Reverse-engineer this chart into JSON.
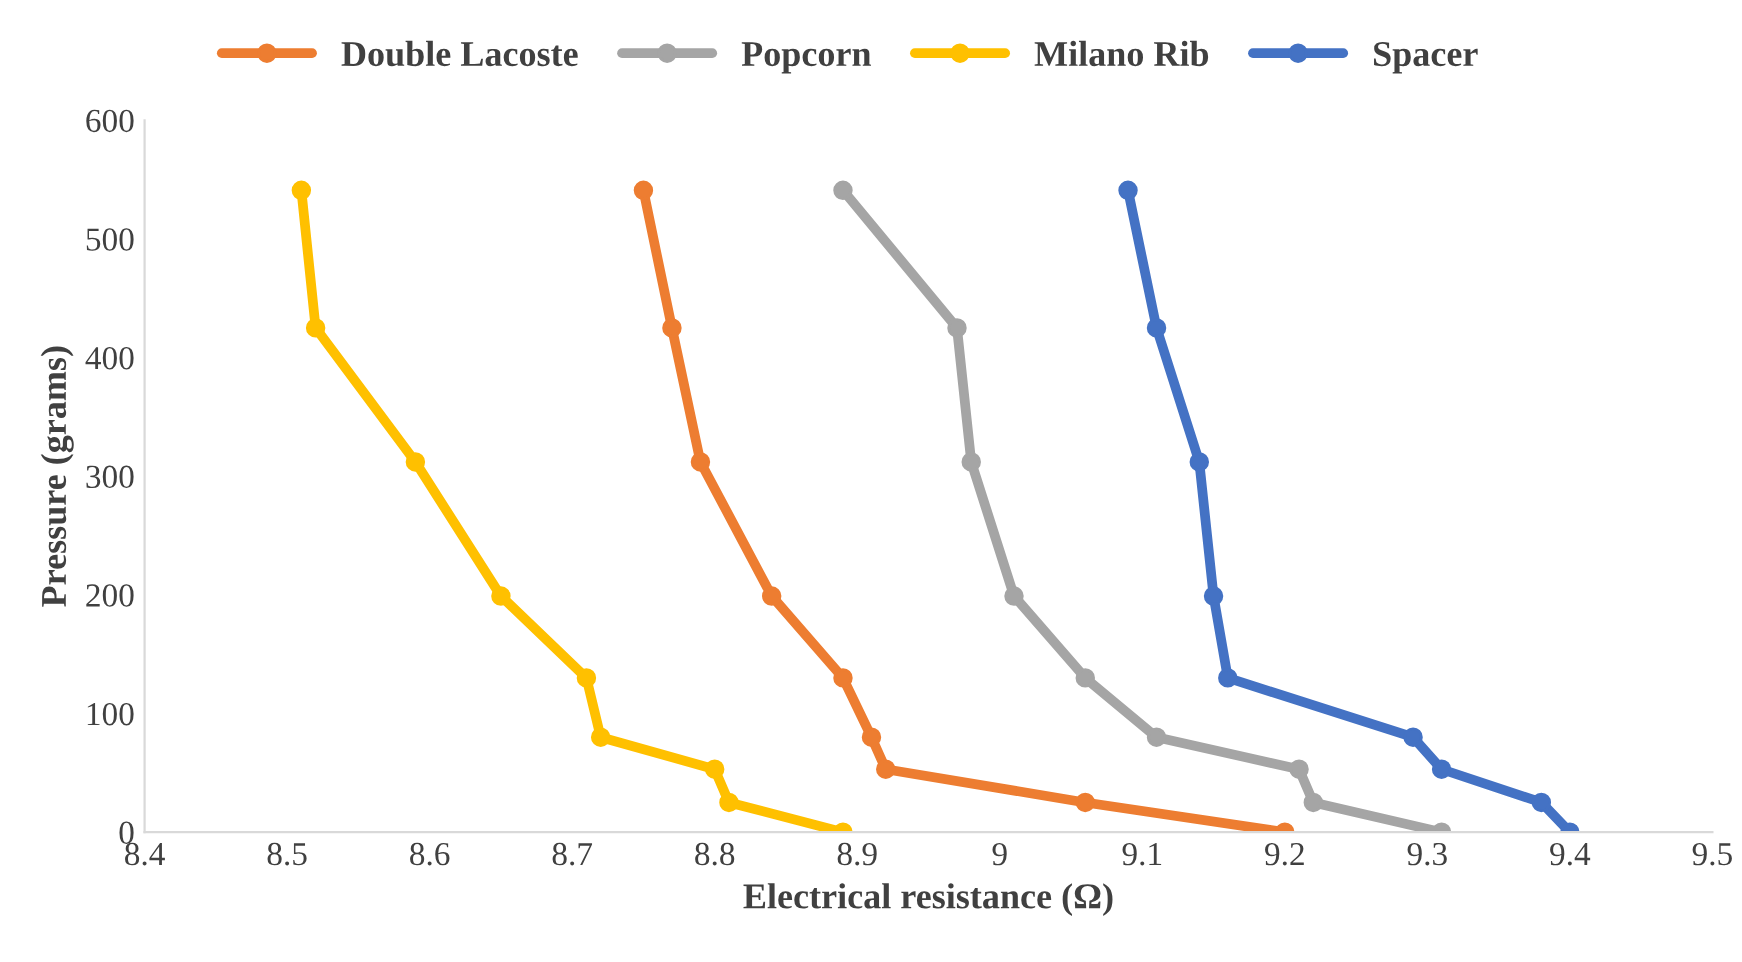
{
  "chart_data": {
    "type": "line",
    "xlabel": "Electrical resistance (Ω)",
    "ylabel": "Pressure (grams)",
    "xlim": [
      8.4,
      9.5
    ],
    "xticks": [
      8.4,
      8.5,
      8.6,
      8.7,
      8.8,
      8.9,
      {
        "value": 9.0,
        "label": "9"
      },
      9.1,
      9.2,
      9.3,
      9.4,
      9.5
    ],
    "ylim": [
      0,
      600
    ],
    "yticks": [
      0,
      100,
      200,
      300,
      400,
      500,
      600
    ],
    "grid": false,
    "legend": "top",
    "marker": "circle",
    "line_style": "solid",
    "series": [
      {
        "name": "Double Lacoste",
        "color": "#ed7d31",
        "x": [
          9.2,
          9.06,
          8.92,
          8.91,
          8.89,
          8.84,
          8.79,
          8.77,
          8.75
        ],
        "values": [
          0,
          25,
          53,
          80,
          130,
          199,
          312,
          425,
          541
        ]
      },
      {
        "name": "Popcorn",
        "color": "#a5a5a5",
        "x": [
          9.31,
          9.22,
          9.21,
          9.11,
          9.06,
          9.01,
          8.98,
          8.97,
          8.89
        ],
        "values": [
          0,
          25,
          53,
          80,
          130,
          199,
          312,
          425,
          541
        ]
      },
      {
        "name": "Milano Rib",
        "color": "#ffc000",
        "x": [
          8.89,
          8.81,
          8.8,
          8.72,
          8.71,
          8.65,
          8.59,
          8.52,
          8.51
        ],
        "values": [
          0,
          25,
          53,
          80,
          130,
          199,
          312,
          425,
          541
        ]
      },
      {
        "name": "Spacer",
        "color": "#4472c4",
        "x": [
          9.4,
          9.38,
          9.31,
          9.29,
          9.16,
          9.15,
          9.14,
          9.11,
          9.09
        ],
        "values": [
          0,
          25,
          53,
          80,
          130,
          199,
          312,
          425,
          541
        ]
      }
    ]
  }
}
